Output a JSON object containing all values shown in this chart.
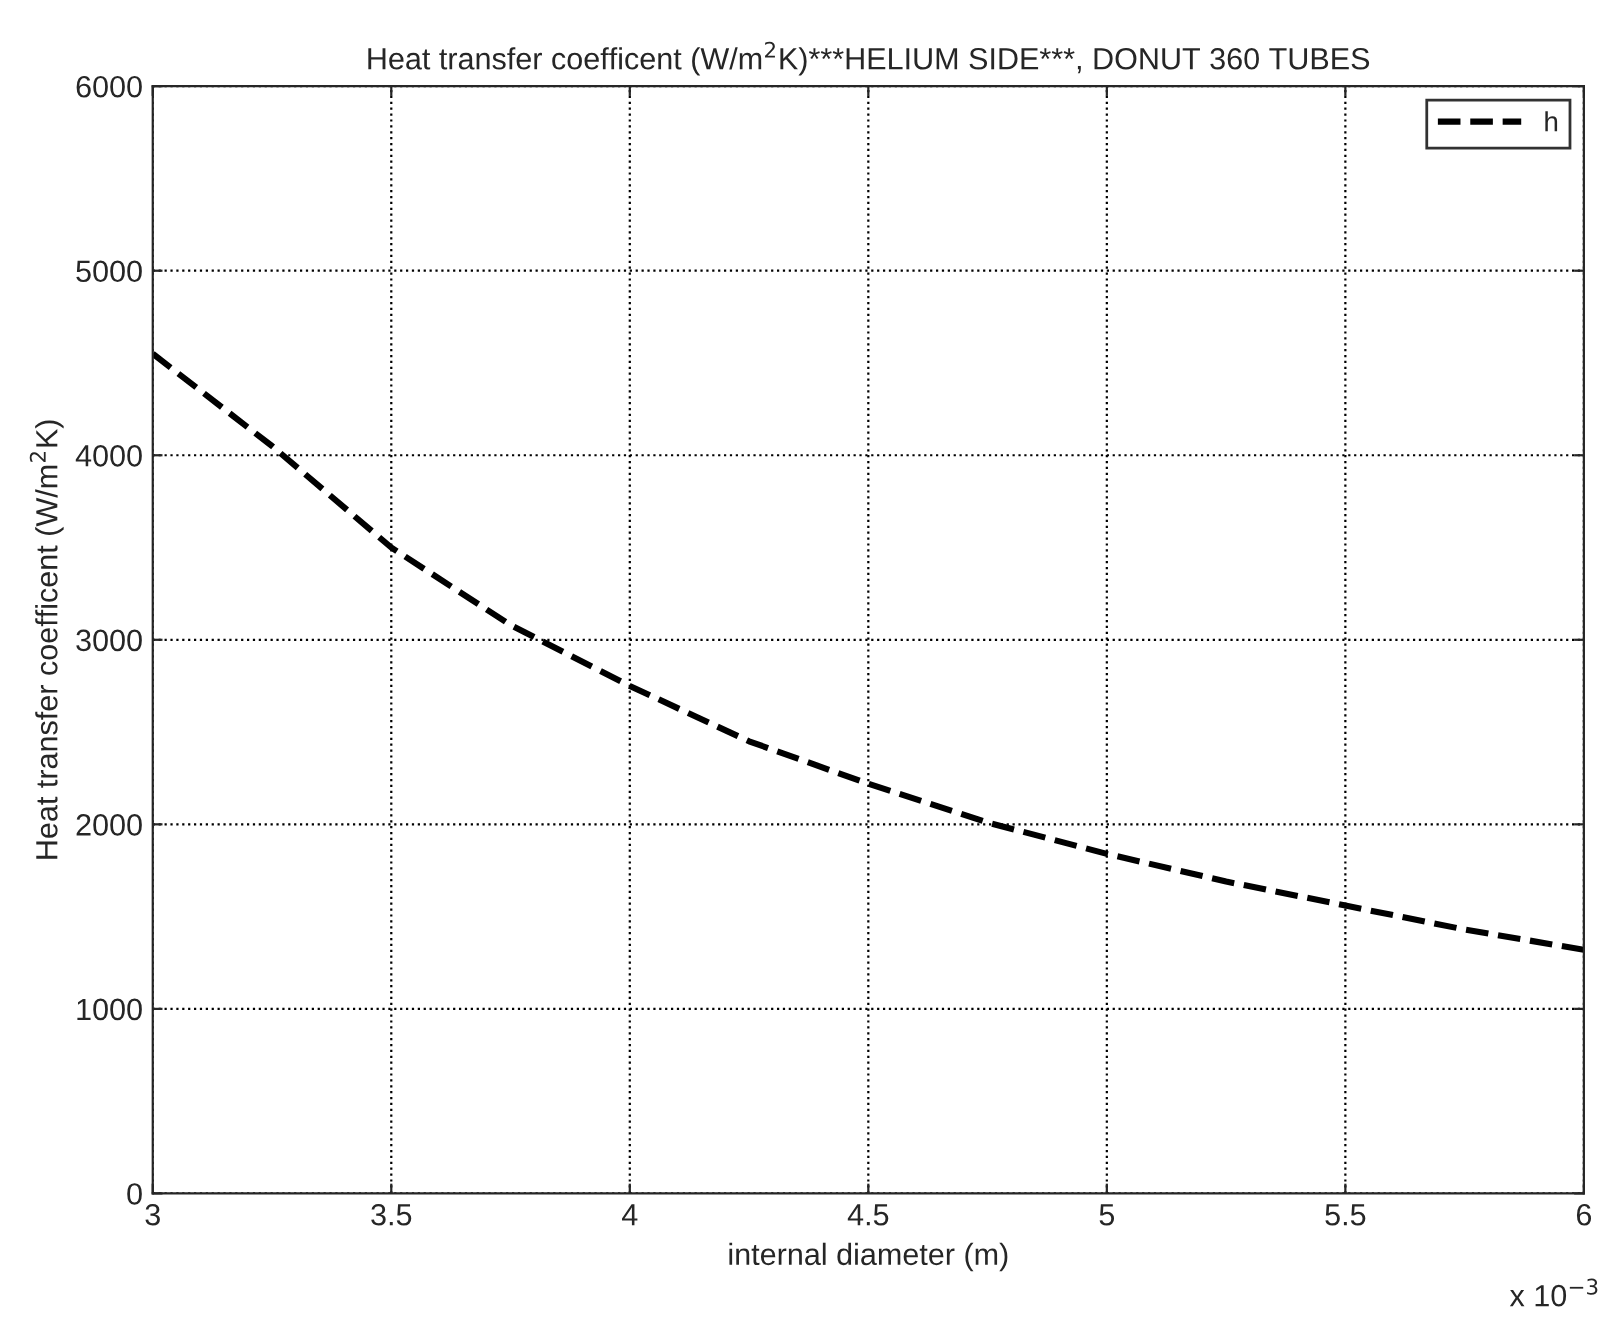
{
  "chart_data": {
    "type": "line",
    "title": "Heat transfer coefficent (W/m$^{2}$K)***HELIUM SIDE***, DONUT 360 TUBES",
    "xlabel": "internal diameter (m)",
    "ylabel": "Heat transfer coefficent (W/m$^{2}$K)",
    "annotations": [
      "x 10$^{−3}$"
    ],
    "x": [
      3,
      3.25,
      3.5,
      3.75,
      4,
      4.25,
      4.5,
      4.75,
      5,
      5.25,
      5.5,
      5.75,
      6
    ],
    "series": [
      {
        "name": "h",
        "color": "#000000",
        "values": [
          4550,
          4050,
          3500,
          3080,
          2750,
          2450,
          2220,
          2010,
          1840,
          1690,
          1560,
          1430,
          1320
        ]
      }
    ],
    "xlim": [
      3,
      6
    ],
    "xticks": [
      3,
      3.5,
      4,
      4.5,
      5,
      5.5,
      6
    ],
    "ylim": [
      0,
      6000
    ],
    "yticks": [
      0,
      1000,
      2000,
      3000,
      4000,
      5000,
      6000
    ],
    "grid": true,
    "legend": "top right",
    "line_style": "dashed",
    "marker": "none"
  }
}
